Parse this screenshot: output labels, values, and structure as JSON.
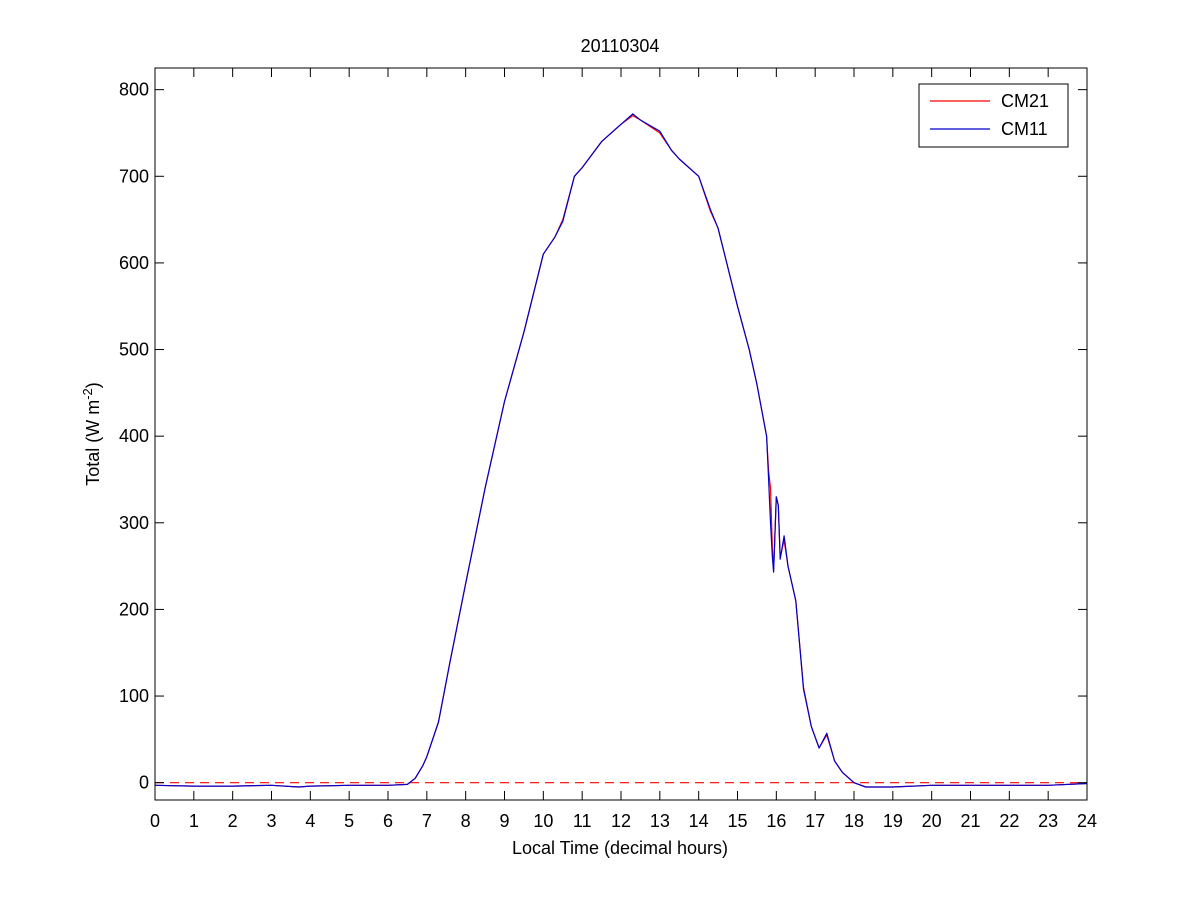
{
  "chart_data": {
    "type": "line",
    "title": "20110304",
    "xlabel": "Local Time (decimal hours)",
    "ylabel": "Total (W m",
    "ylabel_sup": "-2",
    "ylabel_tail": ")",
    "xlim": [
      0,
      24
    ],
    "ylim": [
      -20,
      825
    ],
    "xticks": [
      "0",
      "1",
      "2",
      "3",
      "4",
      "5",
      "6",
      "7",
      "8",
      "9",
      "10",
      "11",
      "12",
      "13",
      "14",
      "15",
      "16",
      "17",
      "18",
      "19",
      "20",
      "21",
      "22",
      "23",
      "24"
    ],
    "yticks": [
      "0",
      "100",
      "200",
      "300",
      "400",
      "500",
      "600",
      "700",
      "800"
    ],
    "grid": false,
    "legend_position": "top-right",
    "reference_line": {
      "y": 0,
      "color": "#ff0000",
      "style": "dashed"
    },
    "series": [
      {
        "name": "CM21",
        "color": "#ff0000",
        "x": [
          0,
          1,
          2,
          3,
          3.7,
          4,
          5,
          6,
          6.5,
          6.7,
          6.9,
          7,
          7.3,
          7.6,
          8,
          8.5,
          9,
          9.5,
          10,
          10.3,
          10.5,
          10.8,
          11,
          11.5,
          12,
          12.3,
          12.5,
          13,
          13.3,
          13.5,
          14,
          14.3,
          14.5,
          15,
          15.3,
          15.5,
          15.75,
          15.8,
          15.85,
          15.9,
          15.93,
          16,
          16.05,
          16.1,
          16.2,
          16.3,
          16.5,
          16.7,
          16.9,
          17.1,
          17.3,
          17.5,
          17.7,
          18,
          18.3,
          19,
          20,
          21,
          22,
          23,
          24
        ],
        "y": [
          -3,
          -4,
          -4,
          -3,
          -5,
          -4,
          -3,
          -3,
          -2,
          5,
          20,
          30,
          70,
          140,
          230,
          340,
          440,
          520,
          610,
          630,
          650,
          700,
          710,
          740,
          760,
          770,
          765,
          750,
          730,
          720,
          700,
          660,
          640,
          550,
          500,
          460,
          400,
          360,
          340,
          270,
          245,
          330,
          320,
          260,
          280,
          250,
          210,
          110,
          65,
          40,
          55,
          25,
          12,
          0,
          -5,
          -5,
          -3,
          -3,
          -3,
          -3,
          -1
        ]
      },
      {
        "name": "CM11",
        "color": "#0000cc",
        "x": [
          0,
          1,
          2,
          3,
          3.7,
          4,
          5,
          6,
          6.5,
          6.7,
          6.9,
          7,
          7.3,
          7.6,
          8,
          8.5,
          9,
          9.5,
          10,
          10.3,
          10.5,
          10.8,
          11,
          11.5,
          12,
          12.3,
          12.5,
          13,
          13.3,
          13.5,
          14,
          14.3,
          14.5,
          15,
          15.3,
          15.5,
          15.75,
          15.8,
          15.85,
          15.9,
          15.93,
          16,
          16.05,
          16.1,
          16.2,
          16.3,
          16.5,
          16.7,
          16.9,
          17.1,
          17.3,
          17.5,
          17.7,
          18,
          18.3,
          19,
          20,
          21,
          22,
          23,
          24
        ],
        "y": [
          -3,
          -4,
          -4,
          -3,
          -5,
          -4,
          -3,
          -3,
          -2,
          5,
          20,
          30,
          70,
          140,
          230,
          340,
          440,
          520,
          610,
          630,
          648,
          700,
          710,
          740,
          760,
          772,
          765,
          752,
          730,
          720,
          700,
          662,
          640,
          550,
          500,
          460,
          400,
          350,
          300,
          260,
          243,
          330,
          320,
          258,
          285,
          250,
          210,
          108,
          65,
          40,
          57,
          25,
          12,
          0,
          -5,
          -5,
          -3,
          -3,
          -3,
          -3,
          -1
        ]
      }
    ]
  }
}
